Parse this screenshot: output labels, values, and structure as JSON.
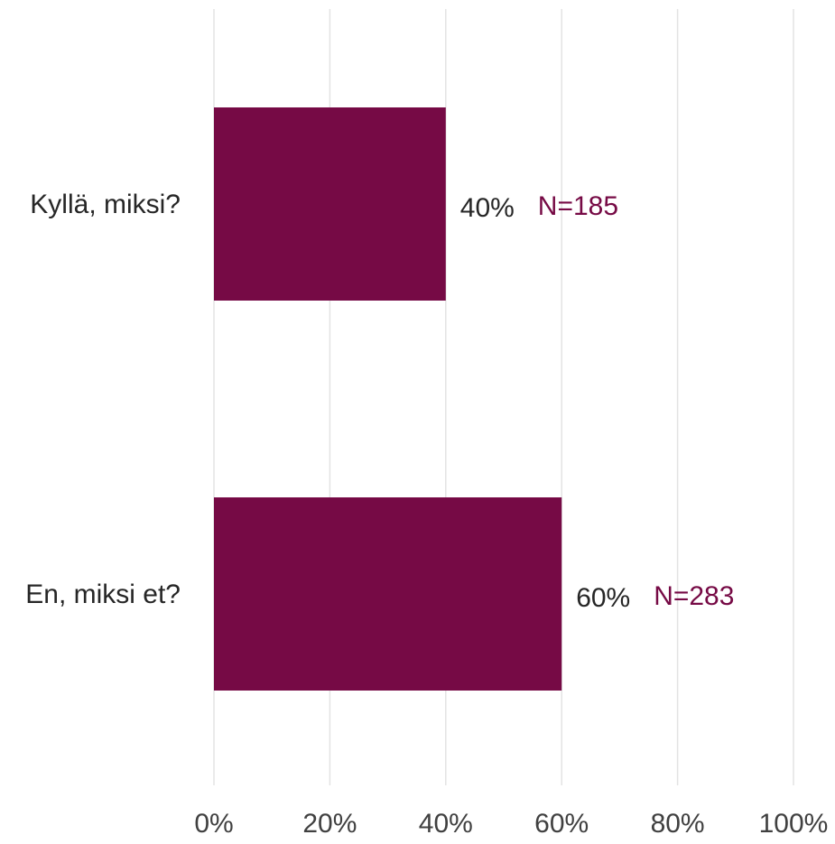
{
  "chart_data": {
    "type": "bar",
    "orientation": "horizontal",
    "categories": [
      "Kyllä, miksi?",
      "En, miksi et?"
    ],
    "values": [
      40,
      60
    ],
    "value_labels": [
      "40%",
      "60%"
    ],
    "n_labels": [
      "N=185",
      "N=283"
    ],
    "xlim": [
      0,
      100
    ],
    "x_ticks": [
      0,
      20,
      40,
      60,
      80,
      100
    ],
    "x_tick_labels": [
      "0%",
      "20%",
      "40%",
      "60%",
      "80%",
      "100%"
    ],
    "grid": true,
    "legend": "none",
    "bar_color": "#760a45",
    "n_label_color": "#760a45"
  }
}
